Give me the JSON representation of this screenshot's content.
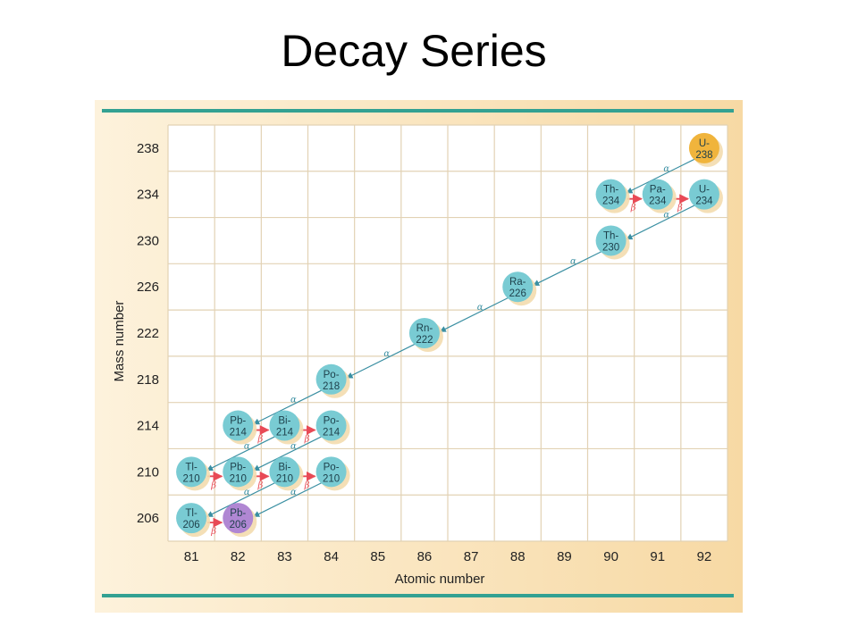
{
  "slide": {
    "title": "Decay Series"
  },
  "colors": {
    "panel_bg": "#fbe6c2",
    "grid_bg": "#ffffff",
    "grid_line": "#e2d2b4",
    "frame_teal": "#33a192",
    "nuclide": "#79cbd3",
    "start_nuclide": "#f0b43c",
    "end_nuclide": "#b087d3",
    "alpha_arrow": "#3a8fa2",
    "beta_arrow": "#e84a56"
  },
  "chart_data": {
    "type": "scatter",
    "xlabel": "Atomic number",
    "ylabel": "Mass number",
    "x_ticks": [
      81,
      82,
      83,
      84,
      85,
      86,
      87,
      88,
      89,
      90,
      91,
      92
    ],
    "y_ticks": [
      206,
      210,
      214,
      218,
      222,
      226,
      230,
      234,
      238
    ],
    "xlim": [
      80.5,
      92.5
    ],
    "ylim": [
      204,
      240
    ],
    "nuclides": [
      {
        "label": "U-238",
        "line1": "U-",
        "line2": "238",
        "z": 92,
        "a": 238,
        "kind": "start"
      },
      {
        "label": "Th-234",
        "line1": "Th-",
        "line2": "234",
        "z": 90,
        "a": 234,
        "kind": "normal"
      },
      {
        "label": "Pa-234",
        "line1": "Pa-",
        "line2": "234",
        "z": 91,
        "a": 234,
        "kind": "normal"
      },
      {
        "label": "U-234",
        "line1": "U-",
        "line2": "234",
        "z": 92,
        "a": 234,
        "kind": "normal"
      },
      {
        "label": "Th-230",
        "line1": "Th-",
        "line2": "230",
        "z": 90,
        "a": 230,
        "kind": "normal"
      },
      {
        "label": "Ra-226",
        "line1": "Ra-",
        "line2": "226",
        "z": 88,
        "a": 226,
        "kind": "normal"
      },
      {
        "label": "Rn-222",
        "line1": "Rn-",
        "line2": "222",
        "z": 86,
        "a": 222,
        "kind": "normal"
      },
      {
        "label": "Po-218",
        "line1": "Po-",
        "line2": "218",
        "z": 84,
        "a": 218,
        "kind": "normal"
      },
      {
        "label": "Pb-214",
        "line1": "Pb-",
        "line2": "214",
        "z": 82,
        "a": 214,
        "kind": "normal"
      },
      {
        "label": "Bi-214",
        "line1": "Bi-",
        "line2": "214",
        "z": 83,
        "a": 214,
        "kind": "normal"
      },
      {
        "label": "Po-214",
        "line1": "Po-",
        "line2": "214",
        "z": 84,
        "a": 214,
        "kind": "normal"
      },
      {
        "label": "Tl-210",
        "line1": "Tl-",
        "line2": "210",
        "z": 81,
        "a": 210,
        "kind": "normal"
      },
      {
        "label": "Pb-210",
        "line1": "Pb-",
        "line2": "210",
        "z": 82,
        "a": 210,
        "kind": "normal"
      },
      {
        "label": "Bi-210",
        "line1": "Bi-",
        "line2": "210",
        "z": 83,
        "a": 210,
        "kind": "normal"
      },
      {
        "label": "Po-210",
        "line1": "Po-",
        "line2": "210",
        "z": 84,
        "a": 210,
        "kind": "normal"
      },
      {
        "label": "Tl-206",
        "line1": "Tl-",
        "line2": "206",
        "z": 81,
        "a": 206,
        "kind": "normal"
      },
      {
        "label": "Pb-206",
        "line1": "Pb-",
        "line2": "206",
        "z": 82,
        "a": 206,
        "kind": "end"
      }
    ],
    "decays": [
      {
        "from": "U-238",
        "to": "Th-234",
        "type": "alpha",
        "symbol": "α"
      },
      {
        "from": "Th-234",
        "to": "Pa-234",
        "type": "beta",
        "symbol": "β"
      },
      {
        "from": "Pa-234",
        "to": "U-234",
        "type": "beta",
        "symbol": "β"
      },
      {
        "from": "U-234",
        "to": "Th-230",
        "type": "alpha",
        "symbol": "α"
      },
      {
        "from": "Th-230",
        "to": "Ra-226",
        "type": "alpha",
        "symbol": "α"
      },
      {
        "from": "Ra-226",
        "to": "Rn-222",
        "type": "alpha",
        "symbol": "α"
      },
      {
        "from": "Rn-222",
        "to": "Po-218",
        "type": "alpha",
        "symbol": "α"
      },
      {
        "from": "Po-218",
        "to": "Pb-214",
        "type": "alpha",
        "symbol": "α"
      },
      {
        "from": "Pb-214",
        "to": "Bi-214",
        "type": "beta",
        "symbol": "β"
      },
      {
        "from": "Bi-214",
        "to": "Po-214",
        "type": "beta",
        "symbol": "β"
      },
      {
        "from": "Bi-214",
        "to": "Tl-210",
        "type": "alpha",
        "symbol": "α"
      },
      {
        "from": "Po-214",
        "to": "Pb-210",
        "type": "alpha",
        "symbol": "α"
      },
      {
        "from": "Tl-210",
        "to": "Pb-210",
        "type": "beta",
        "symbol": "β"
      },
      {
        "from": "Pb-210",
        "to": "Bi-210",
        "type": "beta",
        "symbol": "β"
      },
      {
        "from": "Bi-210",
        "to": "Po-210",
        "type": "beta",
        "symbol": "β"
      },
      {
        "from": "Bi-210",
        "to": "Tl-206",
        "type": "alpha",
        "symbol": "α"
      },
      {
        "from": "Po-210",
        "to": "Pb-206",
        "type": "alpha",
        "symbol": "α"
      },
      {
        "from": "Tl-206",
        "to": "Pb-206",
        "type": "beta",
        "symbol": "β"
      }
    ],
    "grid": true,
    "legend": "none"
  }
}
